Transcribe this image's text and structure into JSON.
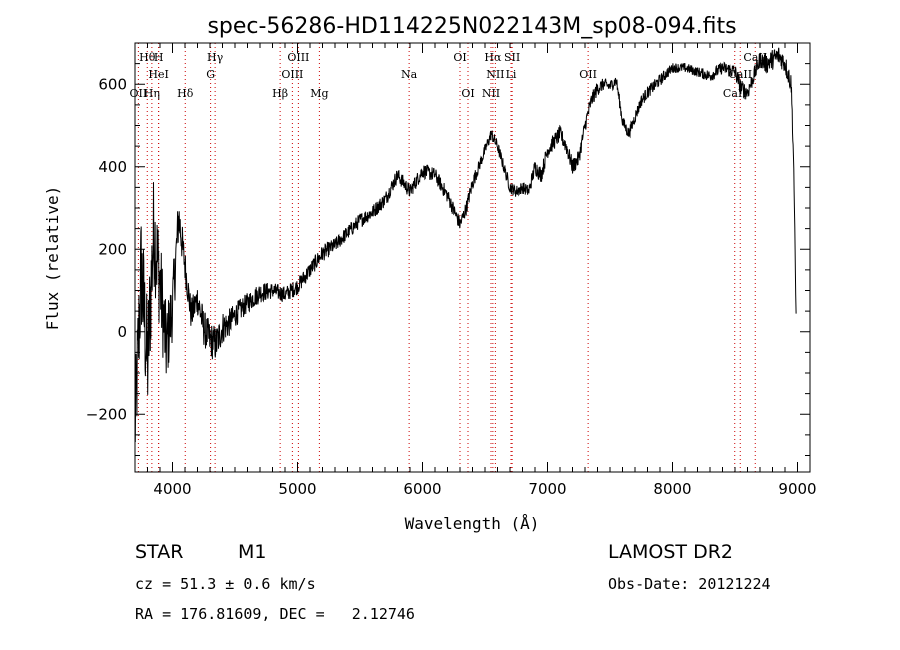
{
  "chart_data": {
    "type": "line",
    "title": "spec-56286-HD114225N022143M_sp08-094.fits",
    "xlabel": "Wavelength (Å)",
    "ylabel": "Flux (relative)",
    "xlim": [
      3700,
      9100
    ],
    "ylim": [
      -340,
      700
    ],
    "xticks": [
      4000,
      5000,
      6000,
      7000,
      8000,
      9000
    ],
    "yticks": [
      -200,
      0,
      200,
      400,
      600
    ],
    "x": [
      3700,
      3750,
      3800,
      3850,
      3900,
      3950,
      4000,
      4050,
      4100,
      4150,
      4200,
      4250,
      4300,
      4350,
      4400,
      4450,
      4500,
      4600,
      4700,
      4800,
      4900,
      5000,
      5100,
      5200,
      5300,
      5400,
      5500,
      5600,
      5700,
      5800,
      5850,
      5900,
      6000,
      6100,
      6200,
      6300,
      6350,
      6400,
      6450,
      6500,
      6550,
      6600,
      6650,
      6700,
      6750,
      6800,
      6850,
      6900,
      6950,
      7000,
      7050,
      7100,
      7150,
      7200,
      7250,
      7300,
      7350,
      7400,
      7450,
      7500,
      7550,
      7600,
      7650,
      7700,
      7750,
      7800,
      7900,
      8000,
      8100,
      8200,
      8300,
      8400,
      8500,
      8550,
      8600,
      8650,
      8700,
      8750,
      8800,
      8850,
      8900,
      8950,
      8970,
      8990
    ],
    "y": [
      -240,
      150,
      -80,
      250,
      120,
      -40,
      60,
      280,
      160,
      40,
      80,
      10,
      -20,
      -30,
      10,
      20,
      40,
      70,
      95,
      100,
      90,
      110,
      150,
      190,
      210,
      240,
      270,
      290,
      320,
      380,
      360,
      340,
      390,
      380,
      330,
      260,
      300,
      360,
      400,
      440,
      480,
      450,
      400,
      350,
      340,
      350,
      340,
      400,
      380,
      440,
      460,
      480,
      450,
      400,
      420,
      500,
      560,
      590,
      600,
      595,
      610,
      510,
      480,
      520,
      560,
      580,
      610,
      640,
      640,
      630,
      620,
      640,
      630,
      590,
      580,
      620,
      660,
      650,
      660,
      670,
      650,
      600,
      400,
      10
    ],
    "noise": [
      120,
      160,
      150,
      140,
      120,
      100,
      80,
      60,
      40,
      40,
      40,
      45,
      45,
      45,
      40,
      35,
      30,
      25,
      25,
      20,
      20,
      20,
      20,
      20,
      18,
      18,
      18,
      18,
      18,
      18,
      18,
      18,
      18,
      18,
      18,
      18,
      18,
      18,
      15,
      15,
      15,
      15,
      15,
      15,
      15,
      15,
      15,
      20,
      20,
      20,
      20,
      20,
      20,
      20,
      20,
      18,
      18,
      18,
      15,
      15,
      15,
      15,
      15,
      15,
      15,
      15,
      15,
      12,
      12,
      12,
      15,
      15,
      20,
      20,
      20,
      20,
      20,
      25,
      25,
      25,
      25,
      25,
      15,
      5
    ],
    "lines": [
      {
        "label": "Hθ",
        "wave": 3798,
        "row": 0
      },
      {
        "label": "H",
        "wave": 3889,
        "row": 0
      },
      {
        "label": "HeI",
        "wave": 3889,
        "row": 1
      },
      {
        "label": "OII",
        "wave": 3727,
        "row": 2
      },
      {
        "label": "Hη",
        "wave": 3835,
        "row": 2
      },
      {
        "label": "Hδ",
        "wave": 4102,
        "row": 2
      },
      {
        "label": "Hγ",
        "wave": 4341,
        "row": 0
      },
      {
        "label": "G",
        "wave": 4305,
        "row": 1
      },
      {
        "label": "OIII",
        "wave": 5007,
        "row": 0
      },
      {
        "label": "OIII",
        "wave": 4959,
        "row": 1
      },
      {
        "label": "Hβ",
        "wave": 4861,
        "row": 2
      },
      {
        "label": "Mg",
        "wave": 5175,
        "row": 2
      },
      {
        "label": "Na",
        "wave": 5893,
        "row": 1
      },
      {
        "label": "OI",
        "wave": 6300,
        "row": 0
      },
      {
        "label": "OI",
        "wave": 6364,
        "row": 2
      },
      {
        "label": "Hα",
        "wave": 6563,
        "row": 0
      },
      {
        "label": "SII",
        "wave": 6717,
        "row": 0
      },
      {
        "label": "NII",
        "wave": 6583,
        "row": 1
      },
      {
        "label": "Li",
        "wave": 6708,
        "row": 1
      },
      {
        "label": "NII",
        "wave": 6548,
        "row": 2
      },
      {
        "label": "OII",
        "wave": 7325,
        "row": 1
      },
      {
        "label": "CaII",
        "wave": 8662,
        "row": 0
      },
      {
        "label": "CaII",
        "wave": 8542,
        "row": 1
      },
      {
        "label": "CaII",
        "wave": 8498,
        "row": 2
      }
    ]
  },
  "info": {
    "object_type": "STAR",
    "subclass": "M1",
    "cz": "cz = 51.3 ± 0.6 km/s",
    "coords": "RA = 176.81609, DEC =   2.12746",
    "survey": "LAMOST DR2",
    "obs_date": "Obs-Date: 20121224"
  }
}
